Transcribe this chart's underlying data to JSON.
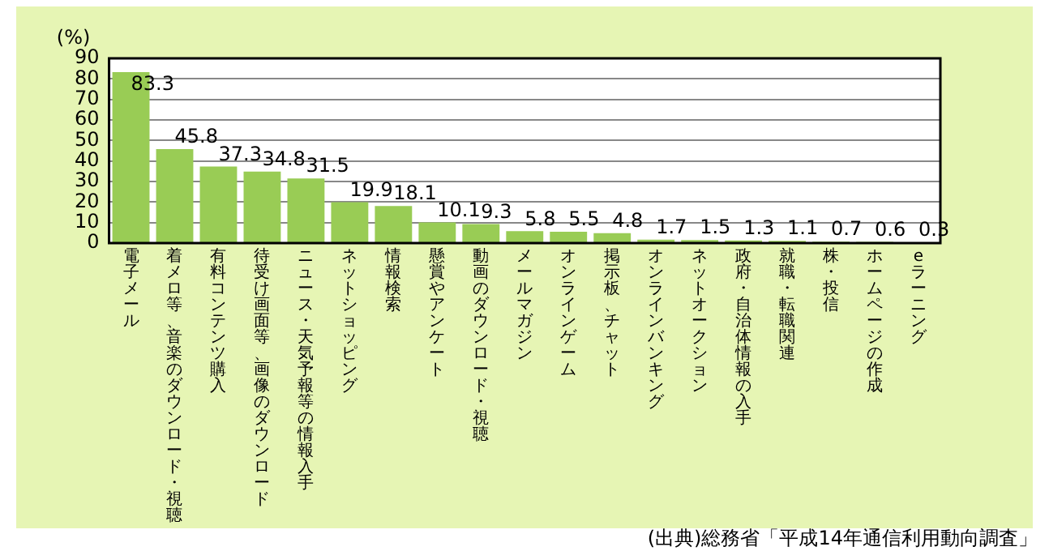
{
  "chart_data": {
    "type": "bar",
    "ylabel": "(%)",
    "categories": [
      "電子メール",
      "着メロ等、音楽のダウンロード・視聴",
      "有料コンテンツ購入",
      "待受け画面等、画像のダウンロード",
      "ニュース・天気予報等の情報入手",
      "ネットショッピング",
      "情報検索",
      "懸賞やアンケート",
      "動画のダウンロード・視聴",
      "メールマガジン",
      "オンラインゲーム",
      "掲示板、チャット",
      "オンラインバンキング",
      "ネットオークション",
      "政府・自治体情報の入手",
      "就職・転職関連",
      "株・投信",
      "ホームページの作成",
      "eラーニング"
    ],
    "values": [
      83.3,
      45.8,
      37.3,
      34.8,
      31.5,
      19.9,
      18.1,
      10.1,
      9.3,
      5.8,
      5.5,
      4.8,
      1.7,
      1.5,
      1.3,
      1.1,
      0.7,
      0.6,
      0.3
    ],
    "color": "#99cc55",
    "ylim": [
      0,
      90
    ],
    "yticks": [
      0,
      10,
      20,
      30,
      40,
      50,
      60,
      70,
      80,
      90
    ],
    "grid": "y",
    "data_labels": true,
    "annotations": [
      "(出典)総務省「平成14年通信利用動向調査」"
    ]
  }
}
